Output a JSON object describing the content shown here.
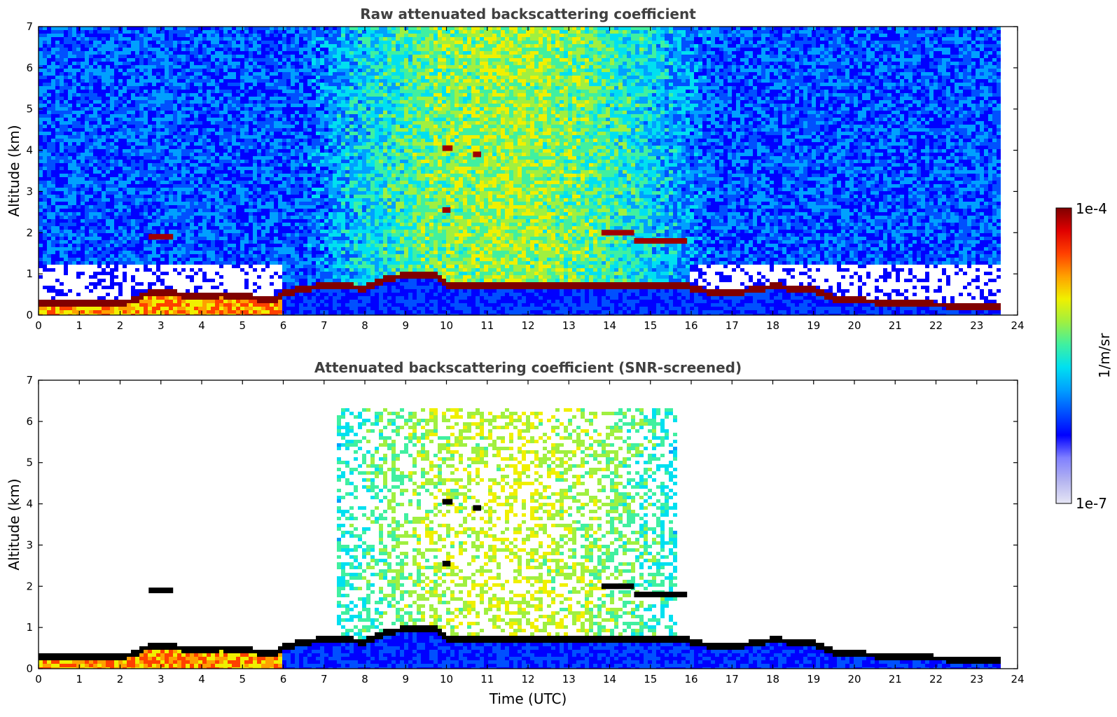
{
  "chart_data": [
    {
      "type": "heatmap",
      "title": "Raw attenuated backscattering coefficient",
      "xlabel": "",
      "ylabel": "Altitude (km)",
      "xlim": [
        0,
        24
      ],
      "ylim": [
        0,
        7
      ],
      "x_ticks": [
        "0",
        "1",
        "2",
        "3",
        "4",
        "5",
        "6",
        "7",
        "8",
        "9",
        "10",
        "11",
        "12",
        "13",
        "14",
        "15",
        "16",
        "17",
        "18",
        "19",
        "20",
        "21",
        "22",
        "23",
        "24"
      ],
      "y_ticks": [
        "0",
        "1",
        "2",
        "3",
        "4",
        "5",
        "6",
        "7"
      ],
      "data_end_time": 23.55,
      "screened": false,
      "boundary_layer_top_km": [
        [
          0,
          0.3
        ],
        [
          1,
          0.3
        ],
        [
          2,
          0.3
        ],
        [
          2.3,
          0.35
        ],
        [
          2.6,
          0.5
        ],
        [
          3,
          0.55
        ],
        [
          3.5,
          0.5
        ],
        [
          4,
          0.45
        ],
        [
          4.5,
          0.5
        ],
        [
          5,
          0.45
        ],
        [
          5.5,
          0.4
        ],
        [
          5.8,
          0.35
        ],
        [
          6,
          0.5
        ],
        [
          6.5,
          0.65
        ],
        [
          7,
          0.7
        ],
        [
          7.5,
          0.7
        ],
        [
          8,
          0.65
        ],
        [
          8.5,
          0.85
        ],
        [
          8.6,
          0.9
        ],
        [
          9,
          0.95
        ],
        [
          9.5,
          1.0
        ],
        [
          9.8,
          0.95
        ],
        [
          10,
          0.72
        ],
        [
          10.5,
          0.7
        ],
        [
          11,
          0.7
        ],
        [
          12,
          0.7
        ],
        [
          13,
          0.72
        ],
        [
          14,
          0.72
        ],
        [
          15,
          0.72
        ],
        [
          15.5,
          0.72
        ],
        [
          15.9,
          0.7
        ],
        [
          16,
          0.65
        ],
        [
          16.5,
          0.55
        ],
        [
          17,
          0.55
        ],
        [
          17.5,
          0.6
        ],
        [
          18,
          0.7
        ],
        [
          18.5,
          0.65
        ],
        [
          19,
          0.6
        ],
        [
          19.5,
          0.4
        ],
        [
          20,
          0.35
        ],
        [
          21,
          0.3
        ],
        [
          22,
          0.25
        ],
        [
          23,
          0.22
        ],
        [
          23.55,
          0.2
        ]
      ],
      "elevated_layers": [
        {
          "t_start": 2.7,
          "t_end": 3.3,
          "alt_km": 1.9
        },
        {
          "t_start": 9.9,
          "t_end": 10.15,
          "alt_km": 4.05
        },
        {
          "t_start": 10.65,
          "t_end": 10.85,
          "alt_km": 3.9
        },
        {
          "t_start": 9.9,
          "t_end": 10.1,
          "alt_km": 2.55
        },
        {
          "t_start": 13.8,
          "t_end": 14.6,
          "alt_km": 2.0
        },
        {
          "t_start": 14.6,
          "t_end": 15.9,
          "alt_km": 1.8
        }
      ]
    },
    {
      "type": "heatmap",
      "title": "Attenuated backscattering coefficient (SNR-screened)",
      "xlabel": "Time (UTC)",
      "ylabel": "Altitude (km)",
      "xlim": [
        0,
        24
      ],
      "ylim": [
        0,
        7
      ],
      "x_ticks": [
        "0",
        "1",
        "2",
        "3",
        "4",
        "5",
        "6",
        "7",
        "8",
        "9",
        "10",
        "11",
        "12",
        "13",
        "14",
        "15",
        "16",
        "17",
        "18",
        "19",
        "20",
        "21",
        "22",
        "23",
        "24"
      ],
      "y_ticks": [
        "0",
        "1",
        "2",
        "3",
        "4",
        "5",
        "6",
        "7"
      ],
      "data_end_time": 23.55,
      "screened": true
    }
  ],
  "colorbar": {
    "label": "1/m/sr",
    "max_label": "1e-4",
    "min_label": "1e-7",
    "scale": "log",
    "colormap": "jet",
    "colors": [
      "#e6e6f5",
      "#b4b4f0",
      "#8080ff",
      "#0000ff",
      "#0050ff",
      "#00a0ff",
      "#00e0f0",
      "#40f0a0",
      "#a0f040",
      "#f0f000",
      "#ffa000",
      "#ff4000",
      "#e00000",
      "#800000"
    ]
  }
}
